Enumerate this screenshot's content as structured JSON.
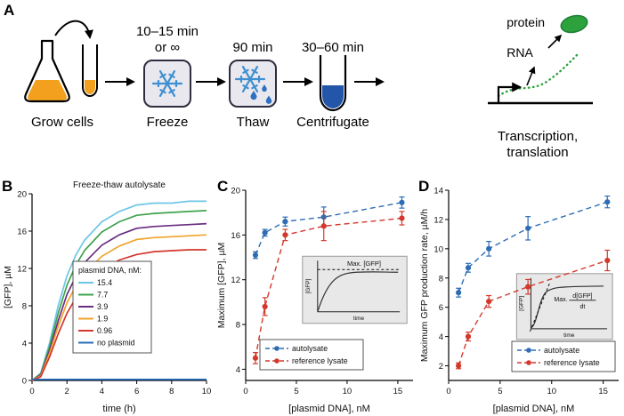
{
  "panels": {
    "a": "A",
    "b": "B",
    "c": "C",
    "d": "D"
  },
  "panel_a": {
    "grow": "Grow cells",
    "freeze_t1": "10–15 min",
    "freeze_t2": "or ∞",
    "freeze": "Freeze",
    "thaw_t": "90 min",
    "thaw": "Thaw",
    "cent_t": "30–60 min",
    "cent": "Centrifugate",
    "protein": "protein",
    "rna": "RNA",
    "tt1": "Transcription,",
    "tt2": "translation"
  },
  "colors": {
    "orange": "#f2a01d",
    "snow_blue": "#3f8fd2",
    "drop_blue": "#2f6fc1",
    "pellet_blue": "#2356a8",
    "green": "#2ca13c",
    "box_fill": "#e8e8ee",
    "box_border": "#2e2e3e",
    "autolysate_blue": "#2e6db4",
    "lysate_red": "#d3382c"
  },
  "chart_data": [
    {
      "type": "line",
      "title": "Freeze-thaw autolysate",
      "xlabel": "time (h)",
      "ylabel": "[GFP], µM",
      "xlim": [
        0,
        10
      ],
      "ylim": [
        0,
        20
      ],
      "xticks": [
        0,
        2,
        4,
        6,
        8,
        10
      ],
      "yticks": [
        0,
        4,
        8,
        12,
        16,
        20
      ],
      "legend_title": "plasmid DNA, nM:",
      "x": [
        0,
        0.5,
        1,
        1.5,
        2,
        2.5,
        3,
        4,
        5,
        6,
        7,
        8,
        9,
        10
      ],
      "series": [
        {
          "name": "15.4",
          "color": "#6ec6e6",
          "values": [
            0,
            0.8,
            4.0,
            8.0,
            11.2,
            13.4,
            15.0,
            17.0,
            18.1,
            18.8,
            19.0,
            19.0,
            19.2,
            19.2
          ]
        },
        {
          "name": "7.7",
          "color": "#3fa34d",
          "values": [
            0,
            0.7,
            3.6,
            7.2,
            10.2,
            12.3,
            13.9,
            15.9,
            17.0,
            17.7,
            17.9,
            18.0,
            18.1,
            18.2
          ]
        },
        {
          "name": "3.9",
          "color": "#6a2d82",
          "values": [
            0,
            0.6,
            3.2,
            6.4,
            9.2,
            11.1,
            12.6,
            14.5,
            15.6,
            16.3,
            16.5,
            16.6,
            16.7,
            16.8
          ]
        },
        {
          "name": "1.9",
          "color": "#f0a42c",
          "values": [
            0,
            0.5,
            2.9,
            5.8,
            8.3,
            10.1,
            11.5,
            13.3,
            14.4,
            15.1,
            15.3,
            15.4,
            15.5,
            15.6
          ]
        },
        {
          "name": "0.96",
          "color": "#d3382c",
          "values": [
            0,
            0.4,
            2.5,
            5.0,
            7.2,
            8.8,
            10.1,
            11.8,
            12.9,
            13.5,
            13.8,
            13.9,
            14.0,
            14.0
          ]
        },
        {
          "name": "no plasmid",
          "color": "#2b6cb8",
          "values": [
            0.1,
            0.1,
            0.1,
            0.1,
            0.1,
            0.1,
            0.1,
            0.1,
            0.1,
            0.1,
            0.1,
            0.1,
            0.1,
            0.1
          ]
        }
      ]
    },
    {
      "type": "scatter",
      "xlabel": "[plasmid DNA], nM",
      "ylabel": "Maximum [GFP], µM",
      "xlim": [
        0,
        16.5
      ],
      "ylim": [
        3,
        20
      ],
      "xticks": [
        0,
        5,
        10,
        15
      ],
      "yticks": [
        4,
        8,
        12,
        16,
        20
      ],
      "x": [
        0.96,
        1.9,
        3.9,
        7.7,
        15.4
      ],
      "series": [
        {
          "name": "autolysate",
          "color": "#2e6db4",
          "values": [
            14.2,
            16.2,
            17.2,
            17.6,
            18.9
          ],
          "err": [
            0.3,
            0.3,
            0.4,
            0.9,
            0.5
          ]
        },
        {
          "name": "reference lysate",
          "color": "#d3382c",
          "values": [
            5.0,
            9.6,
            16.0,
            16.8,
            17.5
          ],
          "err": [
            0.5,
            0.8,
            0.5,
            1.3,
            0.6
          ]
        }
      ],
      "inset": {
        "max_label": "Max. [GFP]",
        "xlabel": "time",
        "ylabel": "[GFP]"
      }
    },
    {
      "type": "scatter",
      "xlabel": "[plasmid DNA], nM",
      "ylabel": "Maximum GFP production rate, µM/h",
      "xlim": [
        0,
        16.5
      ],
      "ylim": [
        1,
        14
      ],
      "xticks": [
        0,
        5,
        10,
        15
      ],
      "yticks": [
        2,
        4,
        6,
        8,
        10,
        12,
        14
      ],
      "x": [
        0.96,
        1.9,
        3.9,
        7.7,
        15.4
      ],
      "series": [
        {
          "name": "autolysate",
          "color": "#2e6db4",
          "values": [
            7.0,
            8.7,
            10.0,
            11.4,
            13.2
          ],
          "err": [
            0.3,
            0.3,
            0.5,
            0.8,
            0.4
          ]
        },
        {
          "name": "reference lysate",
          "color": "#d3382c",
          "values": [
            2.0,
            4.0,
            6.4,
            7.4,
            9.2
          ],
          "err": [
            0.2,
            0.3,
            0.4,
            0.5,
            0.7
          ]
        }
      ],
      "inset": {
        "max_label": "Max.",
        "frac_num": "d[GFP]",
        "frac_den": "dt",
        "xlabel": "time",
        "ylabel": "[GFP]"
      }
    }
  ]
}
